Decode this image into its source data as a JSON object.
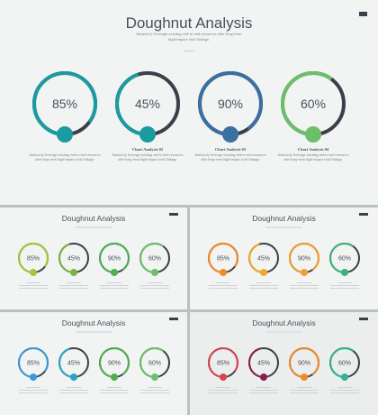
{
  "main": {
    "title": "Doughnut Analysis",
    "subtitle_line1": "Intrinsicly leverage existing end-to-end resources after long-term",
    "subtitle_line2": "high-impact total linkage.",
    "track_color": "#3b3f4a",
    "items": [
      {
        "percent_label": "85%",
        "percent": 85,
        "color": "#1a9ba0",
        "caption_title": "",
        "caption_line1": "Intrinsicly leverage existing end-to-end resources",
        "caption_line2": "after long-term high-impact total linkage."
      },
      {
        "percent_label": "45%",
        "percent": 45,
        "color": "#1a9ba0",
        "caption_title": "Chart Analysis 02",
        "caption_line1": "Intrinsicly leverage existing end-to-end resources",
        "caption_line2": "after long-term high-impact total linkage."
      },
      {
        "percent_label": "90%",
        "percent": 90,
        "color": "#3a6fa0",
        "caption_title": "Chart Analysis 03",
        "caption_line1": "Intrinsicly leverage existing end-to-end resources",
        "caption_line2": "after long-term high-impact total linkage."
      },
      {
        "percent_label": "60%",
        "percent": 60,
        "color": "#6cbf6a",
        "caption_title": "Chart Analysis 04",
        "caption_line1": "Intrinsicly leverage existing end-to-end resources",
        "caption_line2": "after long-term high-impact total linkage."
      }
    ]
  },
  "variants": [
    {
      "title": "Doughnut Analysis",
      "colors": [
        "#a4c639",
        "#7cb342",
        "#4caf50",
        "#6cbf6a"
      ]
    },
    {
      "title": "Doughnut Analysis",
      "colors": [
        "#f08a24",
        "#f5a623",
        "#f0a030",
        "#3bb37a"
      ]
    },
    {
      "title": "Doughnut Analysis",
      "colors": [
        "#3a9ad9",
        "#29a3c4",
        "#4caf50",
        "#6cbf6a"
      ]
    },
    {
      "title": "Doughnut Analysis",
      "colors": [
        "#d9434f",
        "#8a1f4a",
        "#f08a24",
        "#2fb392"
      ]
    }
  ],
  "small_percent_labels": [
    "85%",
    "45%",
    "90%",
    "60%"
  ],
  "small_percents": [
    85,
    45,
    90,
    60
  ]
}
